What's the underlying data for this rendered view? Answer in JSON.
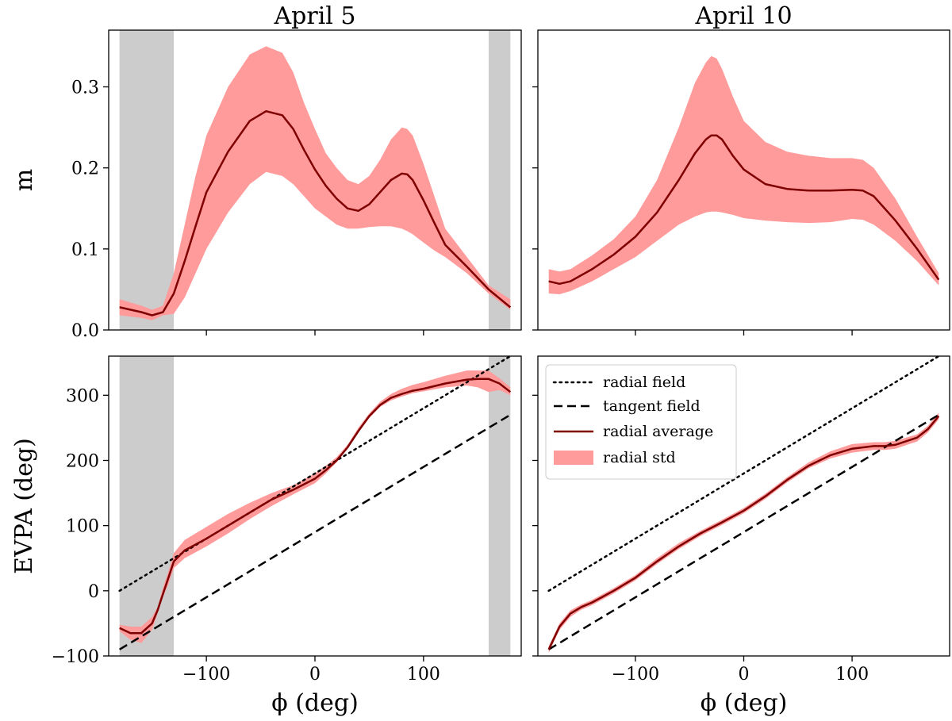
{
  "chart_data": [
    {
      "type": "area",
      "title": "April 5",
      "xlabel": "",
      "ylabel": "m",
      "xlim": [
        -190,
        190
      ],
      "ylim": [
        0.0,
        0.37
      ],
      "xticks": [
        -100,
        0,
        100
      ],
      "yticks": [
        0.0,
        0.1,
        0.2,
        0.3
      ],
      "ytick_labels": [
        "0.0",
        "0.1",
        "0.2",
        "0.3"
      ],
      "show_xtick_labels": false,
      "show_ytick_labels": true,
      "shaded_x_ranges": [
        [
          -180,
          -130
        ],
        [
          160,
          180
        ]
      ],
      "x": [
        -180,
        -160,
        -150,
        -140,
        -130,
        -120,
        -110,
        -100,
        -80,
        -60,
        -45,
        -30,
        -20,
        -10,
        0,
        10,
        20,
        30,
        40,
        50,
        60,
        70,
        80,
        85,
        90,
        100,
        110,
        120,
        140,
        160,
        180
      ],
      "series": [
        {
          "name": "radial average",
          "values": [
            0.028,
            0.022,
            0.018,
            0.022,
            0.045,
            0.085,
            0.128,
            0.17,
            0.22,
            0.258,
            0.27,
            0.265,
            0.248,
            0.222,
            0.198,
            0.178,
            0.162,
            0.15,
            0.147,
            0.155,
            0.17,
            0.185,
            0.193,
            0.192,
            0.185,
            0.16,
            0.132,
            0.105,
            0.078,
            0.05,
            0.028
          ]
        },
        {
          "name": "radial std",
          "lower": [
            0.018,
            0.015,
            0.012,
            0.018,
            0.02,
            0.04,
            0.07,
            0.1,
            0.145,
            0.18,
            0.195,
            0.19,
            0.18,
            0.165,
            0.15,
            0.14,
            0.13,
            0.125,
            0.125,
            0.127,
            0.128,
            0.128,
            0.125,
            0.122,
            0.118,
            0.108,
            0.098,
            0.09,
            0.07,
            0.045,
            0.025
          ],
          "upper": [
            0.038,
            0.03,
            0.025,
            0.03,
            0.07,
            0.13,
            0.19,
            0.24,
            0.3,
            0.34,
            0.35,
            0.342,
            0.318,
            0.28,
            0.248,
            0.218,
            0.2,
            0.185,
            0.18,
            0.19,
            0.21,
            0.235,
            0.25,
            0.248,
            0.24,
            0.205,
            0.165,
            0.125,
            0.09,
            0.055,
            0.038
          ]
        }
      ]
    },
    {
      "type": "area",
      "title": "April 10",
      "xlabel": "",
      "ylabel": "",
      "xlim": [
        -190,
        190
      ],
      "ylim": [
        0.0,
        0.37
      ],
      "xticks": [
        -100,
        0,
        100
      ],
      "yticks": [
        0.0,
        0.1,
        0.2,
        0.3
      ],
      "show_xtick_labels": false,
      "show_ytick_labels": false,
      "x": [
        -180,
        -170,
        -160,
        -140,
        -120,
        -100,
        -80,
        -60,
        -45,
        -35,
        -30,
        -25,
        -20,
        -10,
        0,
        20,
        40,
        60,
        80,
        100,
        110,
        120,
        140,
        160,
        180
      ],
      "series": [
        {
          "name": "radial average",
          "values": [
            0.06,
            0.057,
            0.06,
            0.075,
            0.093,
            0.115,
            0.145,
            0.185,
            0.218,
            0.235,
            0.24,
            0.24,
            0.235,
            0.215,
            0.198,
            0.18,
            0.174,
            0.172,
            0.172,
            0.173,
            0.172,
            0.165,
            0.135,
            0.1,
            0.062
          ]
        },
        {
          "name": "radial std",
          "lower": [
            0.045,
            0.044,
            0.048,
            0.06,
            0.075,
            0.09,
            0.11,
            0.13,
            0.14,
            0.145,
            0.146,
            0.146,
            0.145,
            0.142,
            0.138,
            0.135,
            0.133,
            0.132,
            0.133,
            0.137,
            0.136,
            0.13,
            0.11,
            0.085,
            0.055
          ],
          "upper": [
            0.075,
            0.072,
            0.075,
            0.092,
            0.112,
            0.14,
            0.185,
            0.25,
            0.305,
            0.33,
            0.338,
            0.335,
            0.322,
            0.288,
            0.258,
            0.232,
            0.22,
            0.215,
            0.212,
            0.212,
            0.21,
            0.2,
            0.162,
            0.115,
            0.07
          ]
        }
      ]
    },
    {
      "type": "line",
      "title": "",
      "xlabel": "ϕ (deg)",
      "ylabel": "EVPA (deg)",
      "xlim": [
        -190,
        190
      ],
      "ylim": [
        -100,
        360
      ],
      "xticks": [
        -100,
        0,
        100
      ],
      "xtick_labels": [
        "−100",
        "0",
        "100"
      ],
      "yticks": [
        -100,
        0,
        100,
        200,
        300
      ],
      "ytick_labels": [
        "−100",
        "0",
        "100",
        "200",
        "300"
      ],
      "show_xtick_labels": true,
      "show_ytick_labels": true,
      "shaded_x_ranges": [
        [
          -180,
          -130
        ],
        [
          160,
          180
        ]
      ],
      "radial_field": {
        "x": [
          -180,
          180
        ],
        "y": [
          0,
          360
        ]
      },
      "tangent_field": {
        "x": [
          -180,
          180
        ],
        "y": [
          -90,
          270
        ]
      },
      "x": [
        -180,
        -170,
        -160,
        -150,
        -145,
        -140,
        -135,
        -130,
        -120,
        -100,
        -80,
        -60,
        -40,
        -20,
        0,
        10,
        20,
        30,
        40,
        50,
        60,
        70,
        80,
        90,
        100,
        120,
        140,
        150,
        160,
        170,
        180
      ],
      "series": [
        {
          "name": "radial average",
          "values": [
            -57,
            -65,
            -65,
            -50,
            -30,
            -5,
            20,
            45,
            62,
            80,
            100,
            120,
            140,
            155,
            172,
            185,
            200,
            220,
            245,
            268,
            285,
            296,
            302,
            307,
            310,
            318,
            324,
            325,
            325,
            318,
            305
          ]
        },
        {
          "name": "radial std",
          "lower": [
            -62,
            -75,
            -80,
            -60,
            -35,
            -10,
            10,
            35,
            50,
            68,
            88,
            110,
            130,
            148,
            165,
            180,
            197,
            218,
            243,
            265,
            282,
            292,
            298,
            303,
            306,
            312,
            315,
            312,
            305,
            308,
            300
          ],
          "upper": [
            -52,
            -55,
            -55,
            -40,
            -25,
            5,
            30,
            58,
            78,
            98,
            118,
            135,
            150,
            162,
            180,
            192,
            205,
            224,
            250,
            272,
            290,
            302,
            310,
            316,
            320,
            330,
            338,
            338,
            338,
            326,
            312
          ]
        }
      ]
    },
    {
      "type": "line",
      "title": "",
      "xlabel": "ϕ (deg)",
      "ylabel": "",
      "xlim": [
        -190,
        190
      ],
      "ylim": [
        -100,
        360
      ],
      "xticks": [
        -100,
        0,
        100
      ],
      "xtick_labels": [
        "−100",
        "0",
        "100"
      ],
      "yticks": [
        -100,
        0,
        100,
        200,
        300
      ],
      "show_xtick_labels": true,
      "show_ytick_labels": false,
      "radial_field": {
        "x": [
          -180,
          180
        ],
        "y": [
          0,
          360
        ]
      },
      "tangent_field": {
        "x": [
          -180,
          180
        ],
        "y": [
          -90,
          270
        ]
      },
      "legend": {
        "position": "upper-left",
        "entries": [
          "radial field",
          "tangent field",
          "radial average",
          "radial std"
        ]
      },
      "x": [
        -180,
        -170,
        -160,
        -150,
        -140,
        -120,
        -100,
        -80,
        -60,
        -40,
        -20,
        0,
        20,
        40,
        60,
        80,
        100,
        120,
        130,
        140,
        160,
        170,
        180
      ],
      "series": [
        {
          "name": "radial average",
          "values": [
            -90,
            -55,
            -35,
            -25,
            -18,
            0,
            20,
            45,
            68,
            88,
            105,
            123,
            145,
            170,
            192,
            208,
            218,
            222,
            222,
            224,
            235,
            248,
            268
          ]
        },
        {
          "name": "radial std",
          "lower": [
            -95,
            -60,
            -40,
            -29,
            -22,
            -4,
            16,
            41,
            64,
            84,
            101,
            119,
            141,
            166,
            188,
            203,
            212,
            216,
            216,
            218,
            229,
            243,
            263
          ],
          "upper": [
            -85,
            -50,
            -30,
            -21,
            -14,
            4,
            24,
            50,
            73,
            92,
            109,
            127,
            149,
            174,
            197,
            214,
            225,
            228,
            228,
            230,
            240,
            253,
            273
          ]
        }
      ]
    }
  ]
}
